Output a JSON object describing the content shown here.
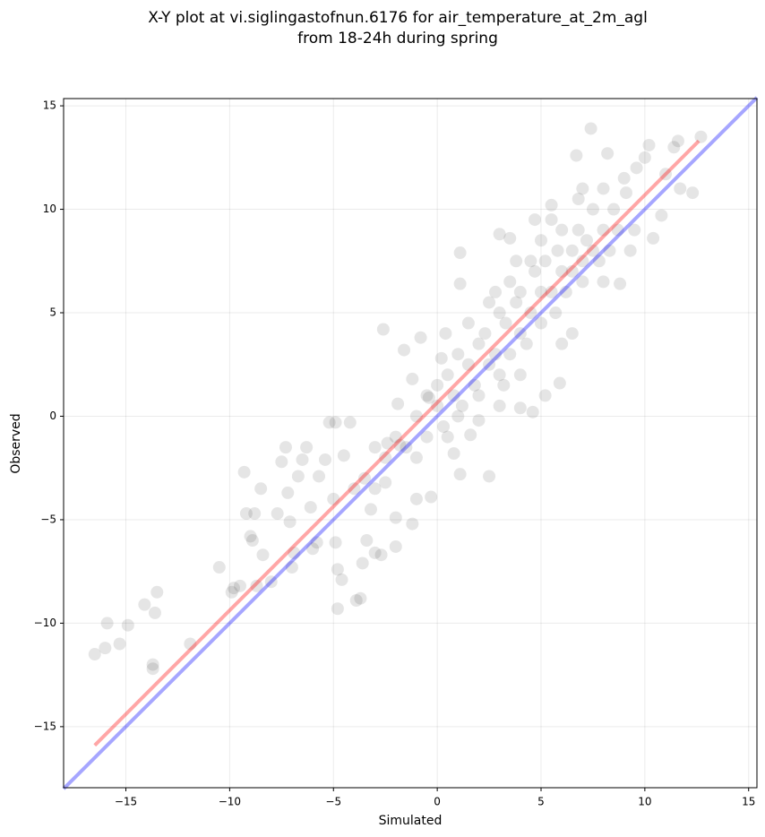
{
  "chart_data": {
    "type": "scatter",
    "title": [
      "X-Y plot at vi.siglingastofnun.6176 for air_temperature_at_2m_agl",
      "from 18-24h during spring"
    ],
    "xlabel": "Simulated",
    "ylabel": "Observed",
    "xlim": [
      -18,
      15.4
    ],
    "ylim": [
      -17.95,
      15.35
    ],
    "xticks": [
      {
        "value": -15,
        "label": "−15"
      },
      {
        "value": -10,
        "label": "−10"
      },
      {
        "value": -5,
        "label": "−5"
      },
      0,
      5,
      10,
      15
    ],
    "yticks": [
      {
        "value": -15,
        "label": "−15"
      },
      {
        "value": -10,
        "label": "−10"
      },
      {
        "value": -5,
        "label": "−5"
      },
      0,
      5,
      10,
      15
    ],
    "grid": true,
    "color": "#000000",
    "x": [
      -16.5,
      -16,
      -15.9,
      -15.3,
      -14.9,
      -14.1,
      -13.6,
      -13.5,
      -13.7,
      -13.7,
      -11.9,
      -10.5,
      -9.9,
      -9.8,
      -9.5,
      -9.2,
      -9,
      -8.9,
      -8.8,
      -9.3,
      -8.5,
      -8.7,
      -8.4,
      -8,
      -7.7,
      -7.5,
      -7.3,
      -7.2,
      -7.1,
      -7,
      -6.9,
      -6.7,
      -6.5,
      -6.3,
      -6.1,
      -6,
      -5.8,
      -5.7,
      -5.4,
      -5.2,
      -5,
      -4.9,
      -4.8,
      -4.8,
      -4.6,
      -4.5,
      -4.9,
      -4.2,
      -4,
      -3.9,
      -3.7,
      -3.6,
      -3.4,
      -3.2,
      -3,
      -2.7,
      -2.5,
      -2.4,
      -2.6,
      -2,
      -2,
      -1.9,
      -1.8,
      -1.6,
      -1.2,
      -1,
      -0.8,
      -0.3,
      -0.4,
      0.4,
      1.1,
      1.1,
      1.1,
      1.6,
      2.5,
      3,
      3.2,
      3.5,
      4,
      4.7,
      4.6,
      5.2,
      5.9,
      5.5,
      6.7,
      7.4,
      8.2,
      9.1,
      9.6,
      10,
      10.2,
      10.4,
      10.8,
      11,
      11.4,
      11.6,
      11.7,
      12.3,
      12.7,
      9.3,
      8.8,
      -1,
      -0.5,
      0,
      0,
      0.3,
      0.5,
      0.8,
      1,
      1.2,
      1.5,
      1.8,
      2,
      2,
      2.3,
      2.5,
      2.8,
      3,
      3,
      3.3,
      3.5,
      3.8,
      4,
      4,
      4.3,
      4.5,
      4.7,
      5,
      5,
      5.2,
      5.5,
      5.7,
      5.8,
      6,
      6,
      6.2,
      6.5,
      6.5,
      6.8,
      7,
      7,
      7.2,
      7.5,
      7.5,
      7.8,
      8,
      8,
      8.3,
      8.5,
      8.7,
      9,
      -2,
      -1.5,
      -2.5,
      -3,
      -3.5,
      -3,
      -1,
      0.5,
      1.5,
      2.5,
      3.5,
      6.5,
      5.5,
      7,
      6,
      4,
      -1.2,
      0.2,
      1,
      2,
      3,
      8,
      9.5,
      6.8,
      5,
      4.5,
      3.8,
      2.8,
      -0.5,
      0.8
    ],
    "values": [
      -11.5,
      -11.2,
      -10,
      -11,
      -10.1,
      -9.1,
      -9.5,
      -8.5,
      -12,
      -12.2,
      -11,
      -7.3,
      -8.5,
      -8.3,
      -8.2,
      -4.7,
      -5.8,
      -6,
      -4.7,
      -2.7,
      -3.5,
      -8.2,
      -6.7,
      -8,
      -4.7,
      -2.2,
      -1.5,
      -3.7,
      -5.1,
      -7.3,
      -6.6,
      -2.9,
      -2.1,
      -1.5,
      -4.4,
      -6.4,
      -6.1,
      -2.9,
      -2.1,
      -0.3,
      -4,
      -6.1,
      -7.4,
      -9.3,
      -7.9,
      -1.9,
      -0.3,
      -0.3,
      -3.5,
      -8.9,
      -8.8,
      -7.1,
      -6,
      -4.5,
      -6.6,
      -6.7,
      -3.2,
      -1.3,
      4.2,
      -4.9,
      -6.3,
      0.6,
      -1.4,
      3.2,
      -5.2,
      -4,
      3.8,
      -3.9,
      0.9,
      4,
      7.9,
      -2.8,
      6.4,
      -0.9,
      -2.9,
      8.8,
      1.5,
      8.6,
      0.4,
      9.5,
      0.2,
      1,
      1.6,
      10.2,
      12.6,
      13.9,
      12.7,
      10.8,
      12,
      12.5,
      13.1,
      8.6,
      9.7,
      11.7,
      13,
      13.3,
      11,
      10.8,
      13.5,
      8,
      6.4,
      0,
      1,
      0.5,
      1.5,
      -0.5,
      2,
      1,
      3,
      0.5,
      2.5,
      1.5,
      3.5,
      1,
      4,
      2.5,
      3,
      5,
      2,
      4.5,
      3,
      5.5,
      4,
      6,
      3.5,
      5,
      7,
      6,
      4.5,
      7.5,
      6,
      5,
      8,
      7,
      9,
      6,
      8,
      7,
      9,
      7.5,
      6.5,
      8.5,
      8,
      10,
      7.5,
      9,
      11,
      8,
      10,
      9,
      11.5,
      -1,
      -1.5,
      -2,
      -1.5,
      -3,
      -3.5,
      -2,
      -1,
      4.5,
      5.5,
      6.5,
      4,
      9.5,
      11,
      3.5,
      2,
      1.8,
      2.8,
      0,
      -0.2,
      0.5,
      6.5,
      9,
      10.5,
      8.5,
      7.5,
      7.5,
      6,
      -1,
      -1.8
    ],
    "lines": [
      {
        "color": "#0000ff",
        "x": [
          -18,
          15.4
        ],
        "values": [
          -18,
          15.4
        ]
      },
      {
        "color": "#ff0000",
        "x": [
          -16.5,
          12.6
        ],
        "values": [
          -15.9,
          13.3
        ]
      }
    ]
  }
}
